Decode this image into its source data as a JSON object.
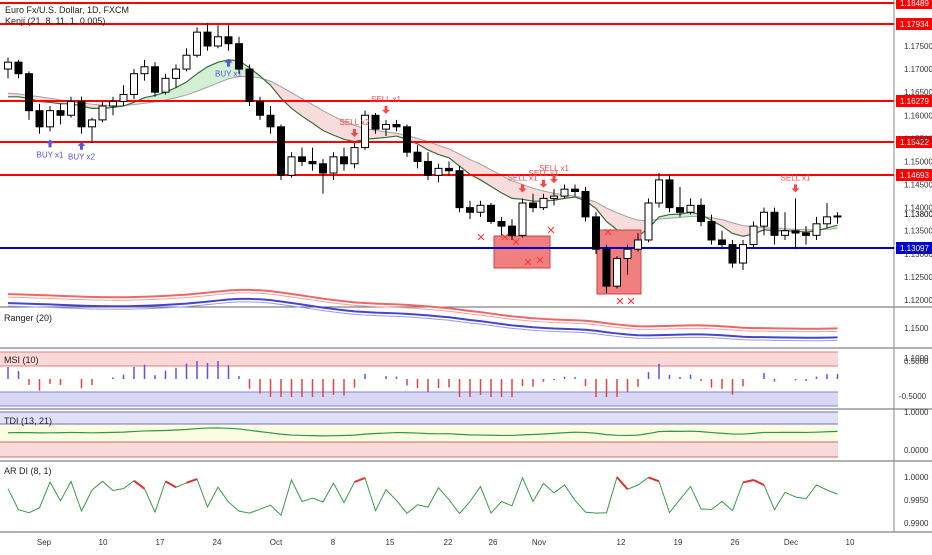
{
  "header": {
    "symbol_line": "Euro Fx/U.S. Dollar, 1D, FXCM",
    "indicator_line": "Kenji (21, 8, 11, 1, 0.005)"
  },
  "main_axis": {
    "ticks": [
      "1.17500",
      "1.17000",
      "1.16500",
      "1.16000",
      "1.15500",
      "1.15000",
      "1.14500",
      "1.14000",
      "1.13500",
      "1.13000",
      "1.12500",
      "1.12000"
    ],
    "horizontal_levels": [
      {
        "label": "1.18489",
        "color": "#ff0000"
      },
      {
        "label": "1.17934",
        "color": "#ff0000"
      },
      {
        "label": "1.16279",
        "color": "#ff0000"
      },
      {
        "label": "1.15422",
        "color": "#ff0000"
      },
      {
        "label": "1.14693",
        "color": "#ff0000"
      },
      {
        "label": "1.13097",
        "color": "#0000cc"
      }
    ],
    "last_price_label": "1.13800"
  },
  "signals": {
    "buy": [
      "BUY x1",
      "BUY x2",
      "BUY x1"
    ],
    "sell": [
      "SELL x2",
      "SELL x1",
      "SELL x1",
      "SELL x1",
      "SELL x1",
      "SELL x1"
    ]
  },
  "panes": {
    "ranger": {
      "title": "Ranger (20)",
      "ticks": [
        "1.1500",
        "1.1000"
      ]
    },
    "msi": {
      "title": "MSI (10)",
      "ticks": [
        "0.5000",
        "-0.5000"
      ]
    },
    "tdi": {
      "title": "TDI (13, 21)",
      "ticks": [
        "1.0000",
        "0.0000"
      ]
    },
    "ardi": {
      "title": "AR DI (8, 1)",
      "ticks": [
        "1.0000",
        "0.9950",
        "0.9900"
      ]
    }
  },
  "x_axis": {
    "labels": [
      "Sep",
      "10",
      "17",
      "24",
      "Oct",
      "8",
      "15",
      "22",
      "26",
      "Nov",
      "12",
      "19",
      "26",
      "Dec",
      "10"
    ]
  },
  "colors": {
    "up": "#ffffff",
    "down": "#000000",
    "level_red": "#ff0000",
    "level_blue": "#0000cc",
    "buy": "#5555dd",
    "sell": "#ff4444"
  },
  "chart_data": {
    "type": "candlestick",
    "ohlc": [
      [
        1.17,
        1.1725,
        1.168,
        1.1715
      ],
      [
        1.1715,
        1.172,
        1.168,
        1.169
      ],
      [
        1.169,
        1.1695,
        1.159,
        1.161
      ],
      [
        1.161,
        1.1625,
        1.156,
        1.1575
      ],
      [
        1.1575,
        1.162,
        1.1565,
        1.161
      ],
      [
        1.161,
        1.1625,
        1.158,
        1.16
      ],
      [
        1.16,
        1.164,
        1.1595,
        1.163
      ],
      [
        1.163,
        1.164,
        1.156,
        1.1575
      ],
      [
        1.1575,
        1.1595,
        1.154,
        1.159
      ],
      [
        1.159,
        1.163,
        1.1585,
        1.162
      ],
      [
        1.162,
        1.164,
        1.16,
        1.163
      ],
      [
        1.163,
        1.1665,
        1.162,
        1.1645
      ],
      [
        1.1645,
        1.17,
        1.1635,
        1.169
      ],
      [
        1.169,
        1.172,
        1.1675,
        1.1705
      ],
      [
        1.1705,
        1.1715,
        1.164,
        1.165
      ],
      [
        1.165,
        1.169,
        1.1645,
        1.168
      ],
      [
        1.168,
        1.171,
        1.166,
        1.17
      ],
      [
        1.17,
        1.1745,
        1.1695,
        1.173
      ],
      [
        1.173,
        1.179,
        1.1725,
        1.178
      ],
      [
        1.178,
        1.18,
        1.174,
        1.175
      ],
      [
        1.175,
        1.1795,
        1.1745,
        1.177
      ],
      [
        1.177,
        1.1795,
        1.174,
        1.1755
      ],
      [
        1.1755,
        1.177,
        1.169,
        1.17
      ],
      [
        1.17,
        1.171,
        1.162,
        1.163
      ],
      [
        1.163,
        1.164,
        1.159,
        1.16
      ],
      [
        1.16,
        1.162,
        1.156,
        1.1575
      ],
      [
        1.1575,
        1.158,
        1.146,
        1.147
      ],
      [
        1.147,
        1.152,
        1.1465,
        1.151
      ],
      [
        1.151,
        1.153,
        1.149,
        1.15
      ],
      [
        1.15,
        1.153,
        1.148,
        1.1495
      ],
      [
        1.1495,
        1.1505,
        1.143,
        1.1475
      ],
      [
        1.1475,
        1.152,
        1.146,
        1.151
      ],
      [
        1.151,
        1.153,
        1.148,
        1.1495
      ],
      [
        1.1495,
        1.154,
        1.1485,
        1.153
      ],
      [
        1.153,
        1.161,
        1.1525,
        1.16
      ],
      [
        1.16,
        1.1605,
        1.156,
        1.157
      ],
      [
        1.157,
        1.159,
        1.1555,
        1.158
      ],
      [
        1.158,
        1.159,
        1.1565,
        1.1575
      ],
      [
        1.1575,
        1.158,
        1.151,
        1.152
      ],
      [
        1.152,
        1.1535,
        1.1485,
        1.15
      ],
      [
        1.15,
        1.152,
        1.146,
        1.147
      ],
      [
        1.147,
        1.1495,
        1.1455,
        1.1485
      ],
      [
        1.1485,
        1.15,
        1.147,
        1.148
      ],
      [
        1.148,
        1.149,
        1.139,
        1.14
      ],
      [
        1.14,
        1.1415,
        1.1375,
        1.139
      ],
      [
        1.139,
        1.1415,
        1.138,
        1.1405
      ],
      [
        1.1405,
        1.141,
        1.1365,
        1.137
      ],
      [
        1.137,
        1.138,
        1.134,
        1.136
      ],
      [
        1.136,
        1.1375,
        1.133,
        1.134
      ],
      [
        1.134,
        1.142,
        1.1335,
        1.141
      ],
      [
        1.141,
        1.143,
        1.139,
        1.14
      ],
      [
        1.14,
        1.143,
        1.1395,
        1.142
      ],
      [
        1.142,
        1.144,
        1.1405,
        1.1425
      ],
      [
        1.1425,
        1.145,
        1.142,
        1.144
      ],
      [
        1.144,
        1.145,
        1.1425,
        1.1435
      ],
      [
        1.1435,
        1.1445,
        1.137,
        1.138
      ],
      [
        1.138,
        1.139,
        1.13,
        1.131
      ],
      [
        1.131,
        1.132,
        1.1215,
        1.123
      ],
      [
        1.123,
        1.1295,
        1.1225,
        1.129
      ],
      [
        1.129,
        1.132,
        1.1255,
        1.131
      ],
      [
        1.131,
        1.1345,
        1.1305,
        1.133
      ],
      [
        1.133,
        1.142,
        1.1325,
        1.141
      ],
      [
        1.141,
        1.1475,
        1.14,
        1.146
      ],
      [
        1.146,
        1.147,
        1.139,
        1.14
      ],
      [
        1.14,
        1.1445,
        1.138,
        1.139
      ],
      [
        1.139,
        1.142,
        1.1385,
        1.1405
      ],
      [
        1.1405,
        1.142,
        1.136,
        1.137
      ],
      [
        1.137,
        1.1385,
        1.132,
        1.133
      ],
      [
        1.133,
        1.135,
        1.131,
        1.132
      ],
      [
        1.132,
        1.133,
        1.127,
        1.128
      ],
      [
        1.128,
        1.133,
        1.1265,
        1.132
      ],
      [
        1.132,
        1.137,
        1.1315,
        1.136
      ],
      [
        1.136,
        1.14,
        1.134,
        1.139
      ],
      [
        1.139,
        1.14,
        1.132,
        1.134
      ],
      [
        1.134,
        1.139,
        1.133,
        1.135
      ],
      [
        1.135,
        1.142,
        1.131,
        1.1345
      ],
      [
        1.1345,
        1.136,
        1.132,
        1.134
      ],
      [
        1.134,
        1.138,
        1.133,
        1.1365
      ],
      [
        1.1365,
        1.141,
        1.1355,
        1.138
      ],
      [
        1.138,
        1.139,
        1.1365,
        1.1382
      ]
    ],
    "kenji_fast": [
      1.164,
      1.164,
      1.1636,
      1.163,
      1.1628,
      1.1625,
      1.1625,
      1.162,
      1.1615,
      1.1615,
      1.1617,
      1.162,
      1.1628,
      1.1638,
      1.1643,
      1.165,
      1.166,
      1.1672,
      1.169,
      1.1705,
      1.1715,
      1.172,
      1.1718,
      1.1703,
      1.1685,
      1.1665,
      1.1637,
      1.1615,
      1.1598,
      1.1583,
      1.1567,
      1.1557,
      1.1548,
      1.1543,
      1.1548,
      1.155,
      1.1552,
      1.1555,
      1.1548,
      1.1538,
      1.1525,
      1.1515,
      1.1508,
      1.149,
      1.1472,
      1.146,
      1.1446,
      1.1432,
      1.142,
      1.1418,
      1.1414,
      1.1414,
      1.1416,
      1.142,
      1.1423,
      1.1415,
      1.1398,
      1.137,
      1.1352,
      1.1342,
      1.1338,
      1.1355,
      1.138,
      1.1385,
      1.1386,
      1.139,
      1.1385,
      1.1372,
      1.136,
      1.1344,
      1.1338,
      1.1343,
      1.1352,
      1.135,
      1.135,
      1.1349,
      1.1347,
      1.135,
      1.1356,
      1.1362
    ],
    "kenji_slow": [
      1.1648,
      1.1646,
      1.1643,
      1.164,
      1.1637,
      1.1633,
      1.163,
      1.1627,
      1.1624,
      1.1622,
      1.1621,
      1.1621,
      1.1623,
      1.1626,
      1.1629,
      1.1633,
      1.1638,
      1.1644,
      1.1652,
      1.1661,
      1.167,
      1.1679,
      1.1684,
      1.1684,
      1.1681,
      1.1674,
      1.1662,
      1.1649,
      1.1636,
      1.1623,
      1.161,
      1.1598,
      1.1587,
      1.1578,
      1.1572,
      1.1567,
      1.1564,
      1.1561,
      1.1556,
      1.155,
      1.1543,
      1.1535,
      1.1527,
      1.1516,
      1.1504,
      1.1494,
      1.1482,
      1.147,
      1.1458,
      1.145,
      1.1442,
      1.1436,
      1.1431,
      1.1428,
      1.1425,
      1.142,
      1.1412,
      1.1399,
      1.1389,
      1.138,
      1.1373,
      1.1372,
      1.1375,
      1.1377,
      1.1379,
      1.1381,
      1.1381,
      1.1378,
      1.1374,
      1.1367,
      1.1361,
      1.1358,
      1.1357,
      1.1355,
      1.1354,
      1.1353,
      1.1352,
      1.1352,
      1.1353,
      1.1355
    ],
    "buy_signals": [
      {
        "bar": 4,
        "label": "BUY x1"
      },
      {
        "bar": 7,
        "label": "BUY x2"
      },
      {
        "bar": 21,
        "label": "BUY x1"
      }
    ],
    "sell_signals": [
      {
        "bar": 33,
        "label": "SELL x2"
      },
      {
        "bar": 36,
        "label": "SELL x1"
      },
      {
        "bar": 49,
        "label": "SELL x1"
      },
      {
        "bar": 51,
        "label": "SELL x1"
      },
      {
        "bar": 52,
        "label": "SELL x1"
      },
      {
        "bar": 75,
        "label": "SELL x1"
      }
    ],
    "ylim": [
      1.1185,
      1.1855
    ]
  }
}
